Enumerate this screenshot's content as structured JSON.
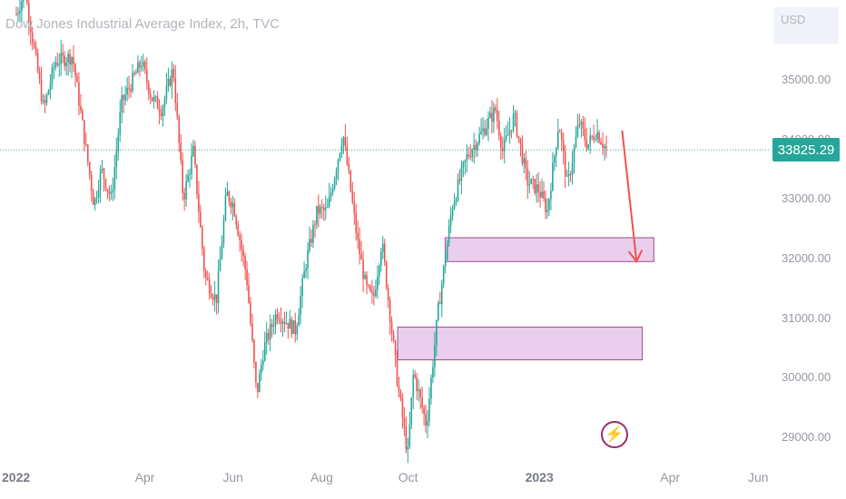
{
  "header": {
    "title": "Dow Jones Industrial Average Index, 2h, TVC",
    "currency": "USD"
  },
  "price_label": {
    "value": "33825.29",
    "color": "#26a69a"
  },
  "badge": {
    "icon": "lightning-icon"
  },
  "colors": {
    "up": "#26a69a",
    "down": "#ef5350",
    "zone_fill": "#e1bee7",
    "zone_border": "#9c4a8a",
    "arrow": "#ef5350",
    "grid_line": "#26a69a"
  },
  "chart_data": {
    "type": "line",
    "title": "Dow Jones Industrial Average Index, 2h, TVC",
    "ylim": [
      28400,
      36400
    ],
    "y_ticks": [
      "35000.00",
      "34000.00",
      "33000.00",
      "32000.00",
      "31000.00",
      "30000.00",
      "29000.00"
    ],
    "x_ticks": [
      "2022",
      "Apr",
      "Jun",
      "Aug",
      "Oct",
      "2023",
      "Apr",
      "Jun"
    ],
    "series": [
      {
        "x": [
          "2022-01-01",
          "2022-01-07",
          "2022-01-20",
          "2022-01-28",
          "2022-02-09",
          "2022-02-24",
          "2022-03-01",
          "2022-03-08",
          "2022-03-15",
          "2022-03-29",
          "2022-04-05",
          "2022-04-12",
          "2022-04-20",
          "2022-04-27",
          "2022-05-04",
          "2022-05-12",
          "2022-05-20",
          "2022-05-27",
          "2022-06-01",
          "2022-06-10",
          "2022-06-17",
          "2022-06-22",
          "2022-07-01",
          "2022-07-14",
          "2022-07-21",
          "2022-07-29",
          "2022-08-05",
          "2022-08-16",
          "2022-08-26",
          "2022-09-01",
          "2022-09-06",
          "2022-09-12",
          "2022-09-23",
          "2022-09-30",
          "2022-10-04",
          "2022-10-13",
          "2022-10-21",
          "2022-10-31",
          "2022-11-10",
          "2022-11-30",
          "2022-12-05",
          "2022-12-13",
          "2022-12-22",
          "2022-12-30",
          "2023-01-05",
          "2023-01-13",
          "2023-01-19",
          "2023-01-27",
          "2023-02-02",
          "2023-02-08",
          "2023-02-15"
        ],
        "y": [
          36100,
          36500,
          34500,
          35300,
          35400,
          32900,
          33500,
          33000,
          34600,
          35300,
          34700,
          34500,
          35200,
          33000,
          33800,
          31700,
          31300,
          33100,
          32900,
          31700,
          29700,
          30500,
          31100,
          30800,
          31900,
          32800,
          32800,
          34100,
          32300,
          31500,
          31300,
          32300,
          29900,
          28700,
          30100,
          29200,
          31100,
          32900,
          33700,
          34500,
          33800,
          34400,
          33300,
          33150,
          32800,
          34300,
          33200,
          34300,
          33900,
          34150,
          33825
        ]
      }
    ],
    "zones": [
      {
        "y_low": 31950,
        "y_high": 32350,
        "x_start": "2022-10-26",
        "x_end": "2023-03-20"
      },
      {
        "y_low": 30300,
        "y_high": 30850,
        "x_start": "2022-09-23",
        "x_end": "2023-03-12"
      }
    ],
    "projection_arrow": {
      "from": {
        "x": "2023-02-26",
        "y": 34150
      },
      "to": {
        "x": "2023-03-08",
        "y": 31950
      }
    },
    "last_price": 33825.29
  }
}
